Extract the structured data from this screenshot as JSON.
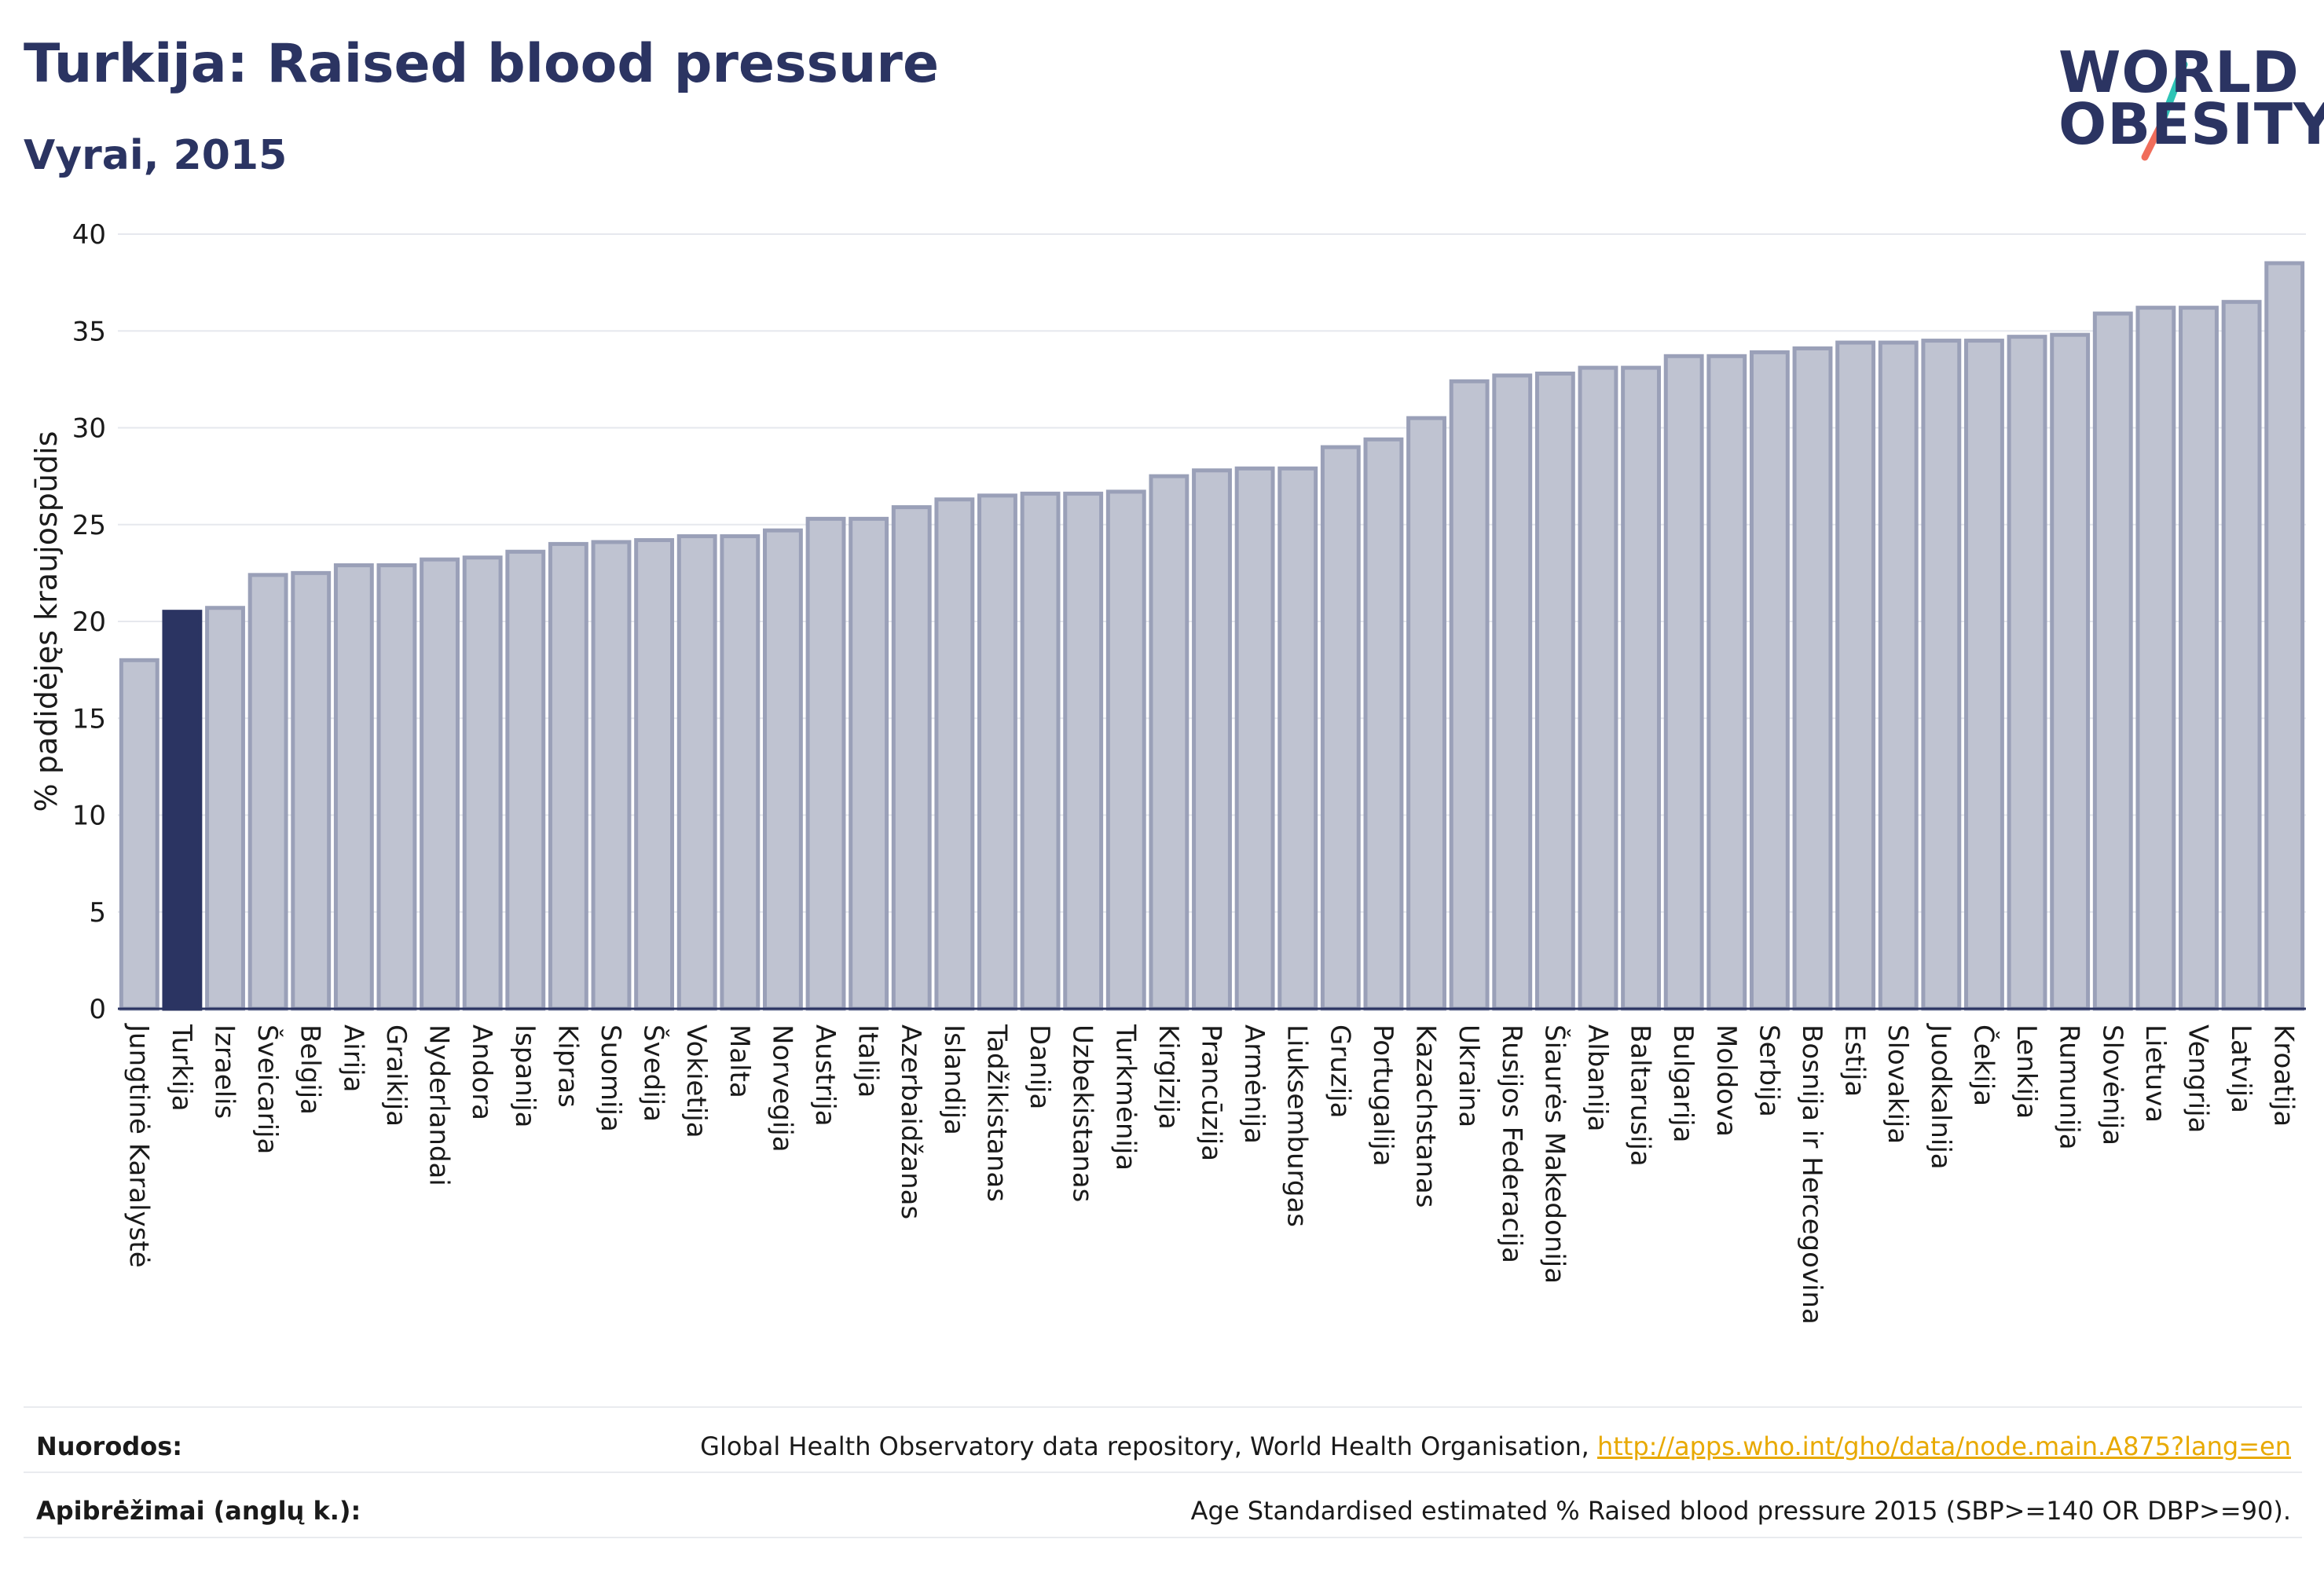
{
  "header": {
    "title": "Turkija: Raised blood pressure",
    "subtitle": "Vyrai, 2015"
  },
  "logo": {
    "line1": "WORLD",
    "line2": "OBESITY"
  },
  "colors": {
    "bar": "#bfc3d1",
    "bar_stroke": "#9aa0b8",
    "highlight": "#2b3462",
    "grid": "#e6e8ee",
    "text": "#2b3462",
    "logo_slash_teal": "#2ec4b6",
    "logo_slash_coral": "#f06d5b",
    "link": "#e8a900"
  },
  "chart_data": {
    "type": "bar",
    "title": "Turkija: Raised blood pressure",
    "subtitle": "Vyrai, 2015",
    "ylabel": "% padidėjęs kraujospūdis",
    "xlabel": "",
    "ylim": [
      0,
      40
    ],
    "yticks": [
      0,
      5,
      10,
      15,
      20,
      25,
      30,
      35,
      40
    ],
    "grid": true,
    "highlight": "Turkija",
    "categories": [
      "Jungtinė Karalystė",
      "Turkija",
      "Izraelis",
      "Šveicarija",
      "Belgija",
      "Airija",
      "Graikija",
      "Nyderlandai",
      "Andora",
      "Ispanija",
      "Kipras",
      "Suomija",
      "Švedija",
      "Vokietija",
      "Malta",
      "Norvegija",
      "Austrija",
      "Italija",
      "Azerbaidžanas",
      "Islandija",
      "Tadžikistanas",
      "Danija",
      "Uzbekistanas",
      "Turkmėnija",
      "Kirgizija",
      "Prancūzija",
      "Armėnija",
      "Liuksemburgas",
      "Gruzija",
      "Portugalija",
      "Kazachstanas",
      "Ukraina",
      "Rusijos Federacija",
      "Šiaurės Makedonija",
      "Albanija",
      "Baltarusija",
      "Bulgarija",
      "Moldova",
      "Serbija",
      "Bosnija ir Hercegovina",
      "Estija",
      "Slovakija",
      "Juodkalnija",
      "Čekija",
      "Lenkija",
      "Rumunija",
      "Slovėnija",
      "Lietuva",
      "Vengrija",
      "Latvija",
      "Kroatija"
    ],
    "values": [
      18.0,
      20.5,
      20.7,
      22.4,
      22.5,
      22.9,
      22.9,
      23.2,
      23.3,
      23.6,
      24.0,
      24.1,
      24.2,
      24.4,
      24.4,
      24.7,
      25.3,
      25.3,
      25.9,
      26.3,
      26.5,
      26.6,
      26.6,
      26.7,
      27.5,
      27.8,
      27.9,
      27.9,
      29.0,
      29.4,
      30.5,
      32.4,
      32.7,
      32.8,
      33.1,
      33.1,
      33.7,
      33.7,
      33.9,
      34.1,
      34.4,
      34.4,
      34.5,
      34.5,
      34.7,
      34.8,
      35.9,
      36.2,
      36.2,
      36.5,
      38.5
    ]
  },
  "footer": {
    "sources_label": "Nuorodos:",
    "sources_text": "Global Health Observatory data repository, World Health Organisation, ",
    "sources_link": "http://apps.who.int/gho/data/node.main.A875?lang=en",
    "definitions_label": "Apibrėžimai (anglų k.):",
    "definitions_text": "Age Standardised estimated % Raised blood pressure 2015 (SBP>=140 OR DBP>=90)."
  }
}
